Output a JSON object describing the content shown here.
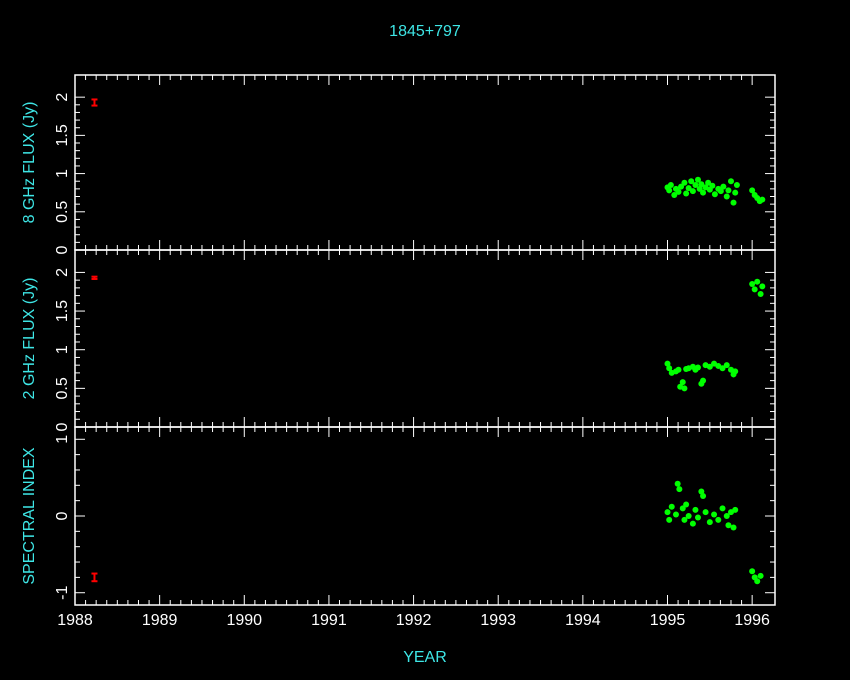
{
  "chart_data": [
    {
      "type": "scatter",
      "title": "1845+797",
      "y_label": "8 GHz FLUX (Jy)",
      "xlim": [
        1988,
        1996.27
      ],
      "xticks": [
        1988,
        1989,
        1990,
        1991,
        1992,
        1993,
        1994,
        1995,
        1996
      ],
      "ylim": [
        0,
        2.29
      ],
      "yticks": [
        0,
        0.5,
        1,
        1.5,
        2
      ],
      "color": "#00ff00",
      "x": [
        1995.0,
        1995.02,
        1995.04,
        1995.08,
        1995.1,
        1995.13,
        1995.16,
        1995.2,
        1995.22,
        1995.25,
        1995.28,
        1995.3,
        1995.33,
        1995.36,
        1995.38,
        1995.4,
        1995.42,
        1995.45,
        1995.48,
        1995.5,
        1995.53,
        1995.56,
        1995.6,
        1995.63,
        1995.66,
        1995.7,
        1995.72,
        1995.75,
        1995.78,
        1995.8,
        1995.82,
        1996.0,
        1996.03,
        1996.06,
        1996.09,
        1996.12
      ],
      "values": [
        0.82,
        0.78,
        0.85,
        0.72,
        0.8,
        0.76,
        0.83,
        0.88,
        0.74,
        0.81,
        0.9,
        0.77,
        0.85,
        0.92,
        0.8,
        0.86,
        0.75,
        0.82,
        0.88,
        0.79,
        0.84,
        0.73,
        0.8,
        0.77,
        0.83,
        0.7,
        0.78,
        0.9,
        0.62,
        0.75,
        0.85,
        0.78,
        0.72,
        0.68,
        0.64,
        0.66
      ],
      "error_bar": {
        "x": 1988.23,
        "value": 1.93,
        "error": 0.04,
        "color": "#ff0000"
      }
    },
    {
      "type": "scatter",
      "y_label": "2 GHz FLUX (Jy)",
      "xlim": [
        1988,
        1996.27
      ],
      "xticks": [
        1988,
        1989,
        1990,
        1991,
        1992,
        1993,
        1994,
        1995,
        1996
      ],
      "ylim": [
        0,
        2.29
      ],
      "yticks": [
        0,
        0.5,
        1,
        1.5,
        2
      ],
      "color": "#00ff00",
      "x": [
        1995.0,
        1995.02,
        1995.05,
        1995.1,
        1995.13,
        1995.15,
        1995.18,
        1995.2,
        1995.22,
        1995.25,
        1995.3,
        1995.33,
        1995.36,
        1995.4,
        1995.42,
        1995.45,
        1995.5,
        1995.55,
        1995.6,
        1995.65,
        1995.7,
        1995.75,
        1995.78,
        1995.8,
        1996.0,
        1996.03,
        1996.06,
        1996.1,
        1996.12
      ],
      "values": [
        0.82,
        0.76,
        0.7,
        0.72,
        0.74,
        0.52,
        0.58,
        0.5,
        0.75,
        0.76,
        0.78,
        0.74,
        0.77,
        0.56,
        0.6,
        0.8,
        0.78,
        0.82,
        0.79,
        0.76,
        0.8,
        0.74,
        0.68,
        0.72,
        1.85,
        1.78,
        1.88,
        1.72,
        1.82
      ],
      "error_bar": {
        "x": 1988.23,
        "value": 1.93,
        "error": 0.015,
        "color": "#ff0000"
      }
    },
    {
      "type": "scatter",
      "y_label": "SPECTRAL INDEX",
      "x_label": "YEAR",
      "xlim": [
        1988,
        1996.27
      ],
      "xticks": [
        1988,
        1989,
        1990,
        1991,
        1992,
        1993,
        1994,
        1995,
        1996
      ],
      "ylim": [
        -1.16,
        1.16
      ],
      "yticks": [
        -1,
        0,
        1
      ],
      "color": "#00ff00",
      "x": [
        1995.0,
        1995.02,
        1995.05,
        1995.1,
        1995.12,
        1995.14,
        1995.18,
        1995.2,
        1995.22,
        1995.25,
        1995.3,
        1995.33,
        1995.36,
        1995.4,
        1995.42,
        1995.45,
        1995.5,
        1995.55,
        1995.6,
        1995.65,
        1995.7,
        1995.72,
        1995.75,
        1995.78,
        1995.8,
        1996.0,
        1996.03,
        1996.06,
        1996.1
      ],
      "values": [
        0.05,
        -0.05,
        0.12,
        0.02,
        0.42,
        0.35,
        0.1,
        -0.05,
        0.15,
        0.0,
        -0.1,
        0.08,
        -0.02,
        0.32,
        0.26,
        0.05,
        -0.08,
        0.02,
        -0.05,
        0.1,
        0.0,
        -0.12,
        0.05,
        -0.15,
        0.08,
        -0.72,
        -0.8,
        -0.85,
        -0.78
      ],
      "error_bar": {
        "x": 1988.23,
        "value": -0.8,
        "error": 0.05,
        "color": "#ff0000"
      }
    }
  ]
}
